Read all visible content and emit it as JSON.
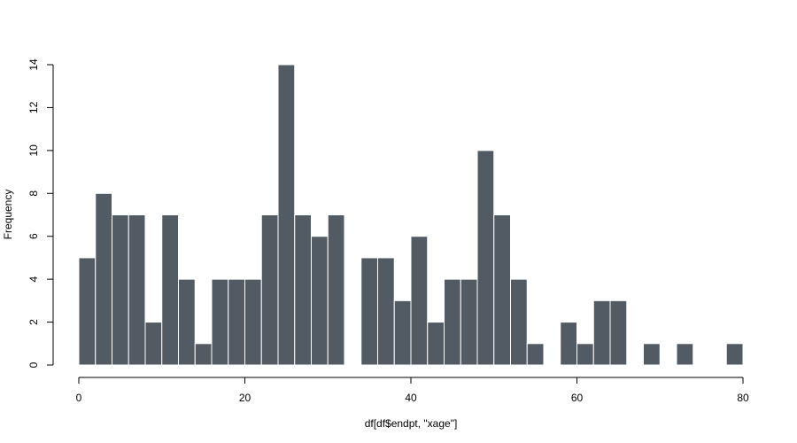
{
  "chart_data": {
    "type": "bar",
    "xlabel": "df[df$endpt, \"xage\"]",
    "ylabel": "Frequency",
    "xlim": [
      0,
      80
    ],
    "ylim": [
      0,
      14
    ],
    "xticks": [
      0,
      20,
      40,
      60,
      80
    ],
    "yticks": [
      0,
      2,
      4,
      6,
      8,
      10,
      12,
      14
    ],
    "bin_width": 2,
    "bin_edges": [
      0,
      2,
      4,
      6,
      8,
      10,
      12,
      14,
      16,
      18,
      20,
      22,
      24,
      26,
      28,
      30,
      32,
      34,
      36,
      38,
      40,
      42,
      44,
      46,
      48,
      50,
      52,
      54,
      56,
      58,
      60,
      62,
      64,
      66,
      68,
      70,
      72,
      74,
      76,
      78,
      80
    ],
    "values": [
      5,
      8,
      7,
      7,
      2,
      7,
      4,
      1,
      4,
      4,
      4,
      7,
      14,
      7,
      6,
      7,
      0,
      5,
      5,
      3,
      6,
      2,
      4,
      4,
      10,
      7,
      4,
      1,
      0,
      2,
      1,
      3,
      3,
      0,
      1,
      0,
      1,
      0,
      0,
      1
    ],
    "colors": {
      "bar_fill": "#525b63",
      "bar_border": "#ffffff"
    },
    "grid": false
  }
}
